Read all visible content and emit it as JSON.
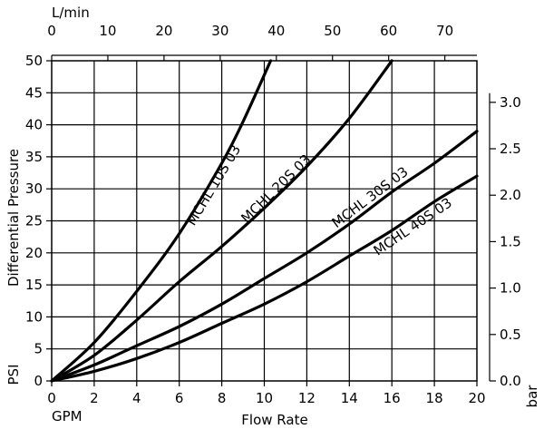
{
  "chart_data": {
    "type": "line",
    "title": "",
    "xlabel": "Flow Rate",
    "x_unit_label": "GPM",
    "x_top_unit_label": "L/min",
    "ylabel": "Differential Pressure",
    "y_unit_label": "PSI",
    "y_right_unit_label": "bar",
    "xlim": [
      0,
      20
    ],
    "ylim": [
      0,
      50
    ],
    "x_ticks": [
      "0",
      "2",
      "4",
      "6",
      "8",
      "10",
      "12",
      "14",
      "16",
      "18",
      "20"
    ],
    "x_top_ticks": [
      "0",
      "10",
      "20",
      "30",
      "40",
      "50",
      "60",
      "70"
    ],
    "y_ticks": [
      "0",
      "5",
      "10",
      "15",
      "20",
      "25",
      "30",
      "35",
      "40",
      "45",
      "50"
    ],
    "y_right_ticks": [
      "0.0",
      "0.5",
      "1.0",
      "1.5",
      "2.0",
      "2.5",
      "3.0"
    ],
    "grid": true,
    "series": [
      {
        "name": "MCHL 10S 03",
        "x": [
          0,
          2,
          4,
          6,
          8,
          9,
          10.3
        ],
        "y": [
          0,
          6,
          14,
          23,
          34,
          40.5,
          50
        ],
        "label_at": [
          7.8,
          30.2
        ]
      },
      {
        "name": "MCHL 20S 03",
        "x": [
          0,
          2,
          4,
          6,
          8,
          10,
          12,
          14,
          16
        ],
        "y": [
          0,
          4,
          9.5,
          15.5,
          21,
          27,
          33.5,
          41,
          50
        ],
        "label_at": [
          10.7,
          29.5
        ]
      },
      {
        "name": "MCHL 30S 03",
        "x": [
          0,
          2,
          4,
          6,
          8,
          10,
          12,
          14,
          16,
          18,
          20
        ],
        "y": [
          0,
          2.5,
          5.5,
          8.5,
          12,
          16,
          20,
          24.5,
          29.5,
          34,
          39
        ],
        "label_at": [
          15.1,
          28.1
        ]
      },
      {
        "name": "MCHL 40S 03",
        "x": [
          0,
          2,
          4,
          6,
          8,
          10,
          12,
          14,
          16,
          18,
          20
        ],
        "y": [
          0,
          1.5,
          3.5,
          6,
          9,
          12,
          15.5,
          19.5,
          23.5,
          28,
          32
        ],
        "label_at": [
          17.1,
          23.5
        ]
      }
    ]
  }
}
